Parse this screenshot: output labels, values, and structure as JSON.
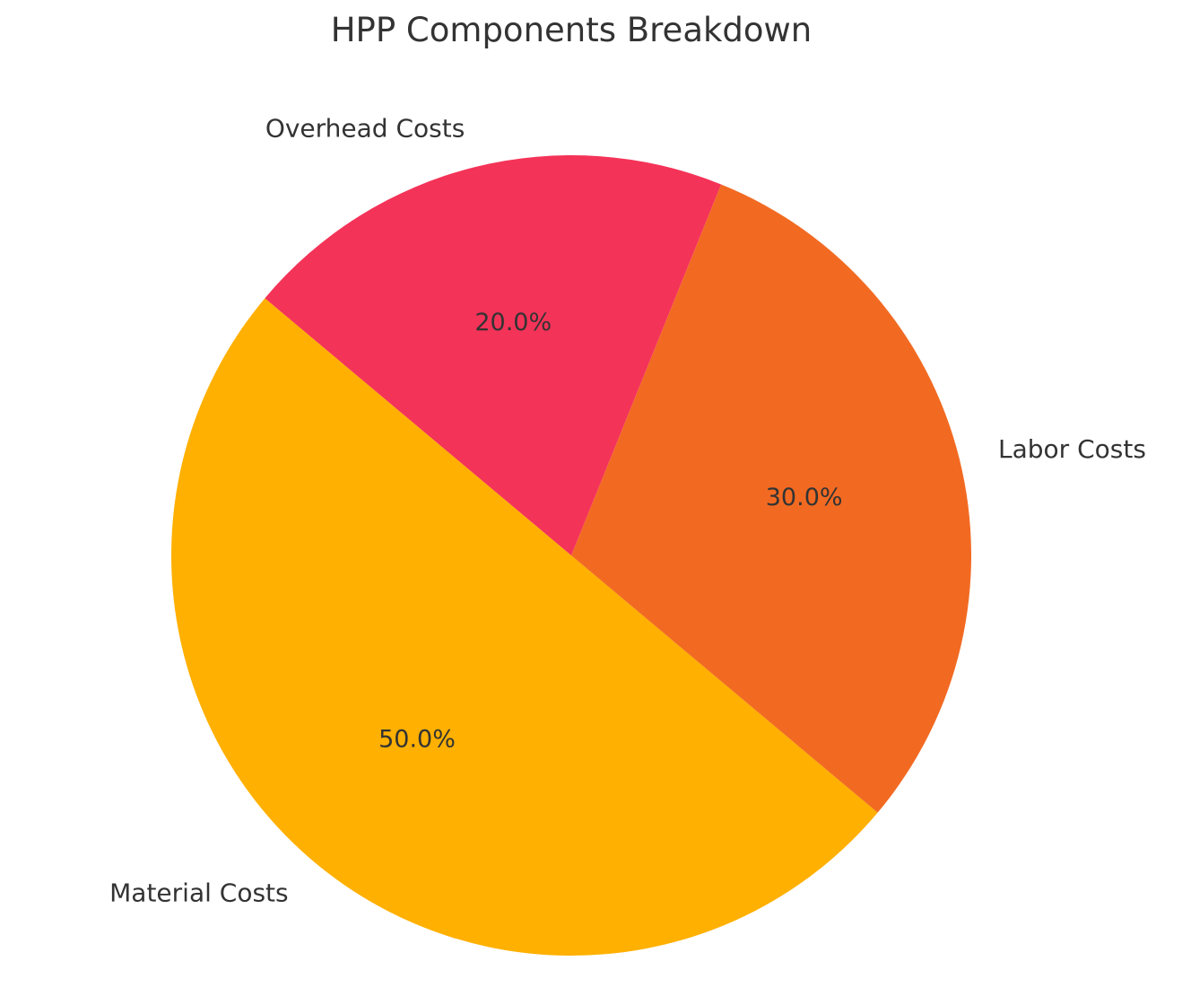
{
  "chart_data": {
    "type": "pie",
    "title": "HPP Components Breakdown",
    "categories": [
      "Material Costs",
      "Labor Costs",
      "Overhead Costs"
    ],
    "values": [
      50,
      30,
      20
    ],
    "percent_labels": [
      "50.0%",
      "30.0%",
      "20.0%"
    ],
    "colors": [
      "#FFB000",
      "#F26A22",
      "#F43358"
    ],
    "start_angle_deg": 140,
    "direction": "counterclockwise"
  }
}
